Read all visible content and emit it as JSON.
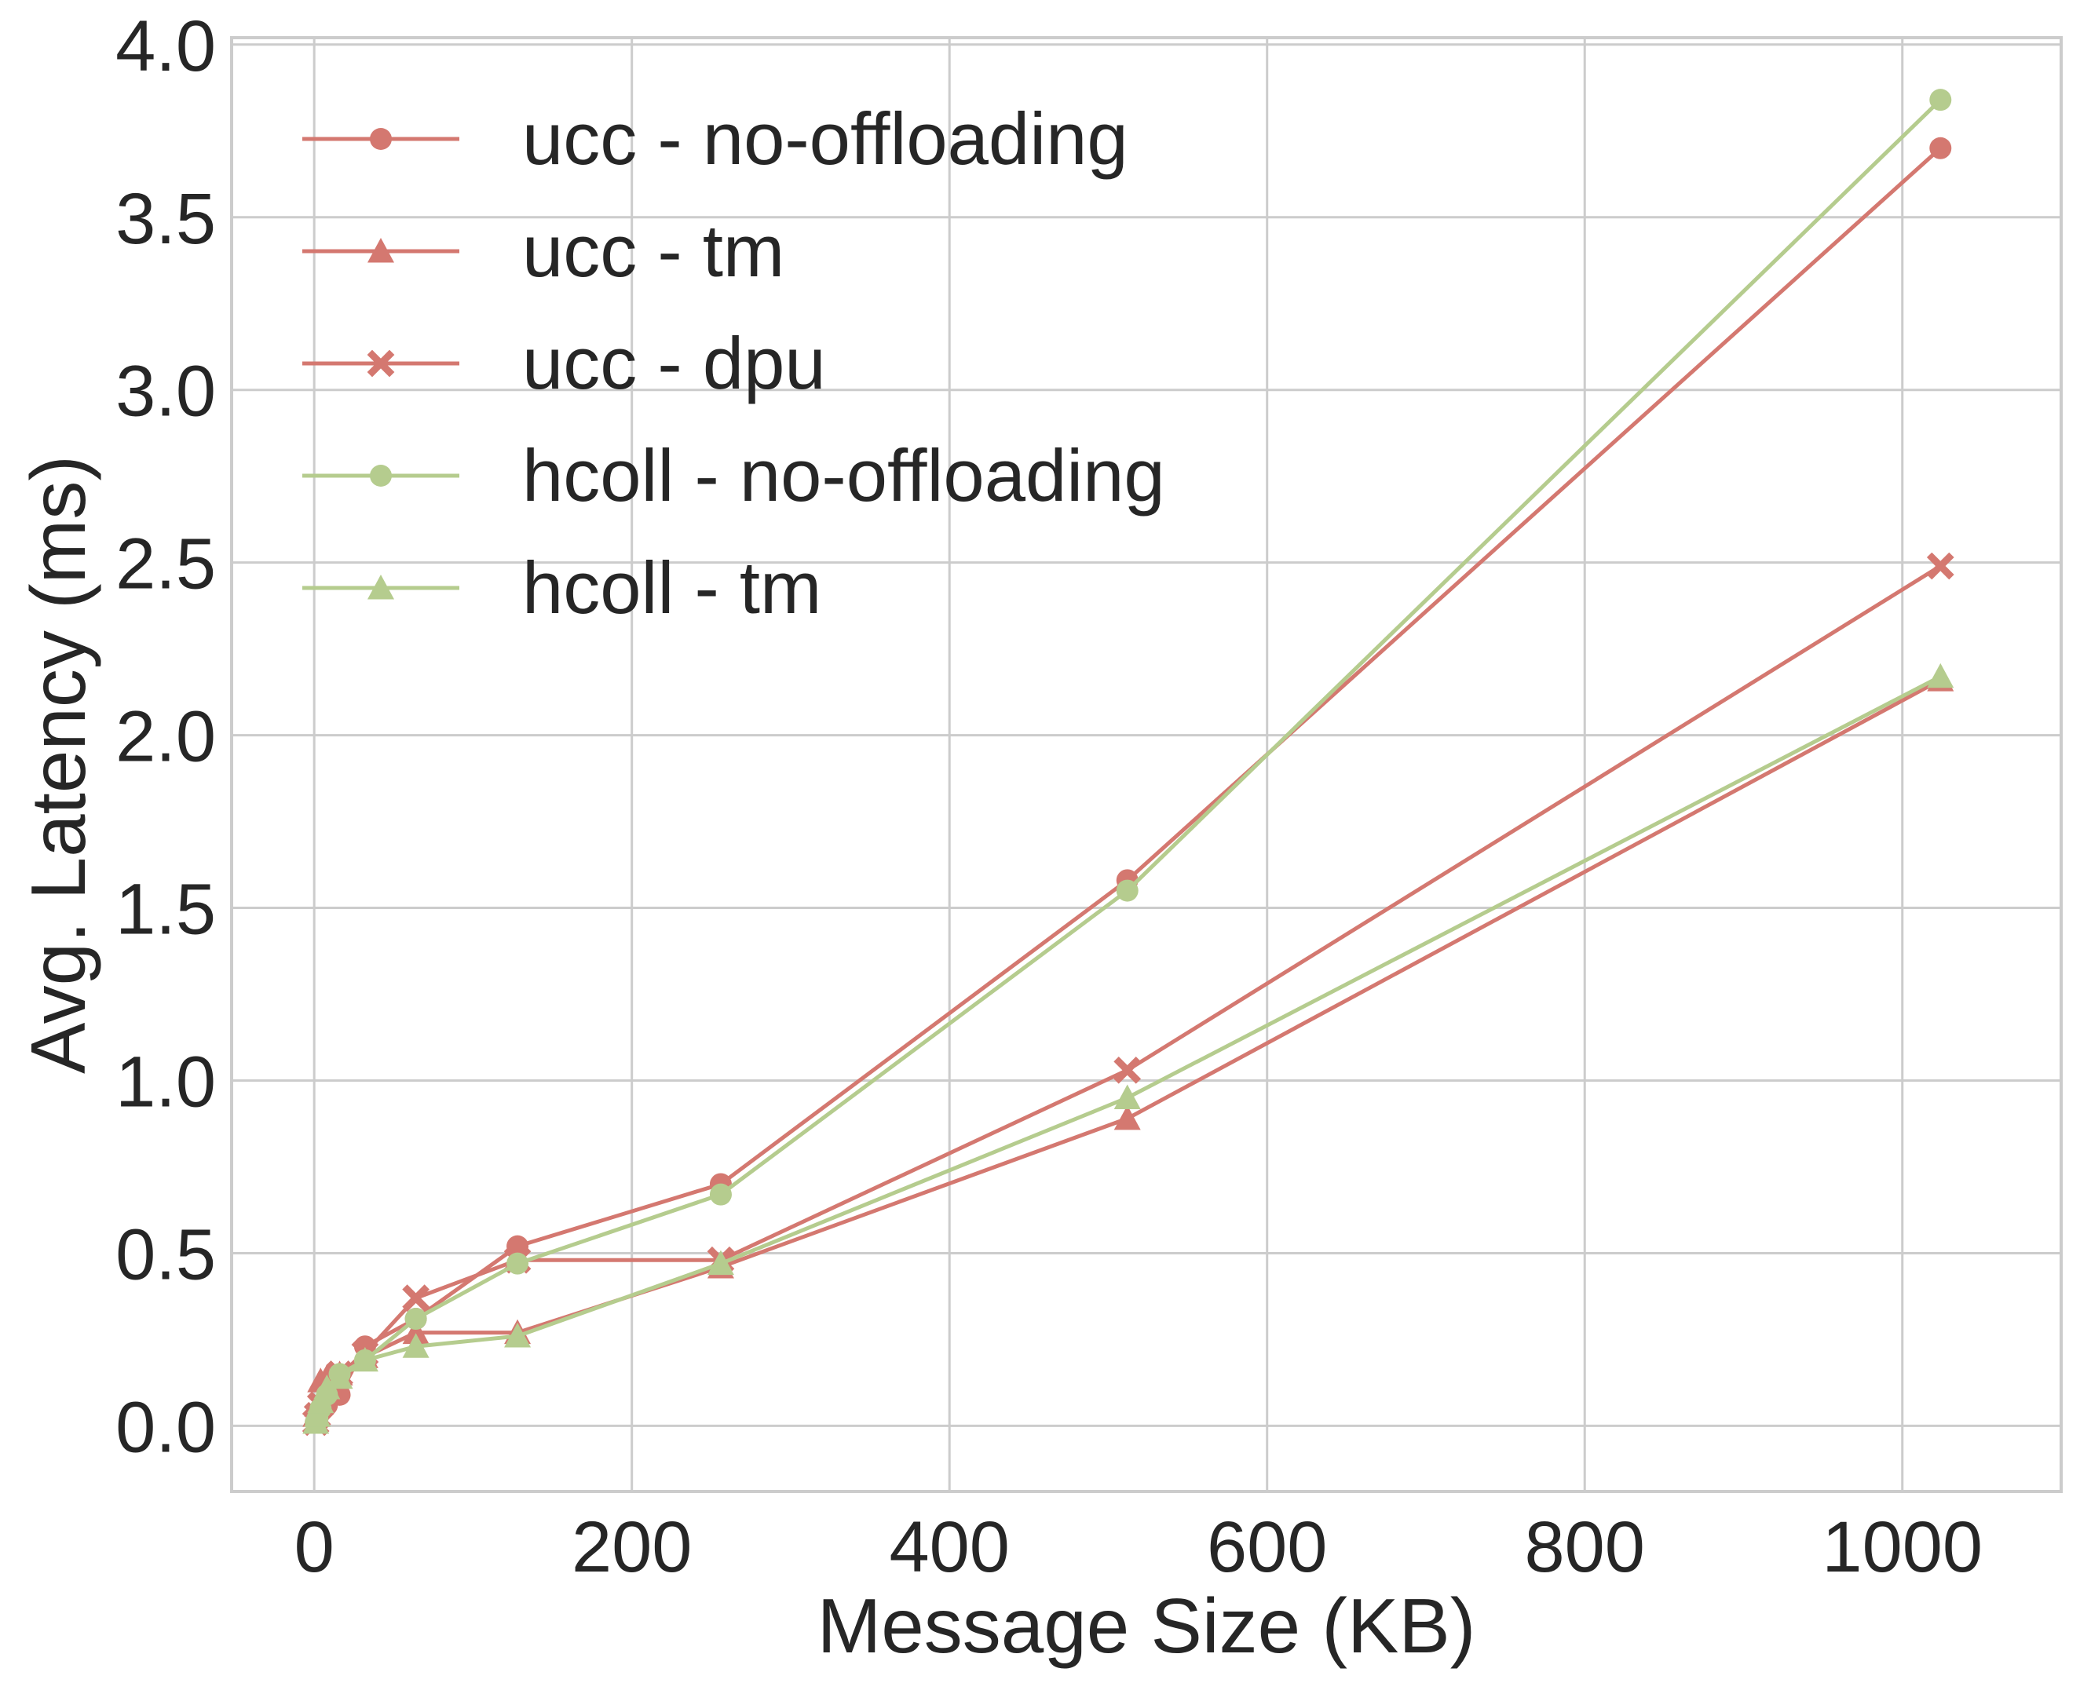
{
  "chart_data": {
    "type": "line",
    "xlabel": "Message Size (KB)",
    "ylabel": "Avg. Latency (ms)",
    "xlim": [
      -52,
      1100
    ],
    "ylim": [
      -0.19,
      4.02
    ],
    "xticks": [
      0,
      200,
      400,
      600,
      800,
      1000
    ],
    "yticks": [
      0.0,
      0.5,
      1.0,
      1.5,
      2.0,
      2.5,
      3.0,
      3.5,
      4.0
    ],
    "xtick_labels": [
      "0",
      "200",
      "400",
      "600",
      "800",
      "1000"
    ],
    "ytick_labels": [
      "0.0",
      "0.5",
      "1.0",
      "1.5",
      "2.0",
      "2.5",
      "3.0",
      "3.5",
      "4.0"
    ],
    "grid": true,
    "legend_position": "upper-left",
    "colors": {
      "ucc": "#d47870",
      "hcoll": "#b5cc8e",
      "grid": "#cccccc",
      "text": "#262626"
    },
    "x": [
      1,
      2,
      4,
      8,
      16,
      32,
      64,
      128,
      256,
      512,
      1024
    ],
    "series": [
      {
        "name": "ucc - no-offloading",
        "marker": "circle",
        "color": "#d47870",
        "values": [
          0.01,
          0.02,
          0.04,
          0.06,
          0.09,
          0.23,
          0.31,
          0.52,
          0.7,
          1.58,
          3.7
        ]
      },
      {
        "name": "ucc - tm",
        "marker": "triangle",
        "color": "#d47870",
        "values": [
          0.03,
          0.06,
          0.13,
          0.14,
          0.15,
          0.2,
          0.27,
          0.27,
          0.46,
          0.89,
          2.16
        ]
      },
      {
        "name": "ucc - dpu",
        "marker": "x",
        "color": "#d47870",
        "values": [
          0.01,
          0.03,
          0.06,
          0.1,
          0.15,
          0.21,
          0.37,
          0.48,
          0.48,
          1.03,
          2.49
        ]
      },
      {
        "name": "hcoll - no-offloading",
        "marker": "circle",
        "color": "#b5cc8e",
        "values": [
          0.01,
          0.02,
          0.05,
          0.09,
          0.15,
          0.19,
          0.31,
          0.47,
          0.67,
          1.55,
          3.84
        ]
      },
      {
        "name": "hcoll - tm",
        "marker": "triangle",
        "color": "#b5cc8e",
        "values": [
          0.01,
          0.03,
          0.07,
          0.11,
          0.14,
          0.19,
          0.23,
          0.26,
          0.47,
          0.95,
          2.17
        ]
      }
    ]
  }
}
